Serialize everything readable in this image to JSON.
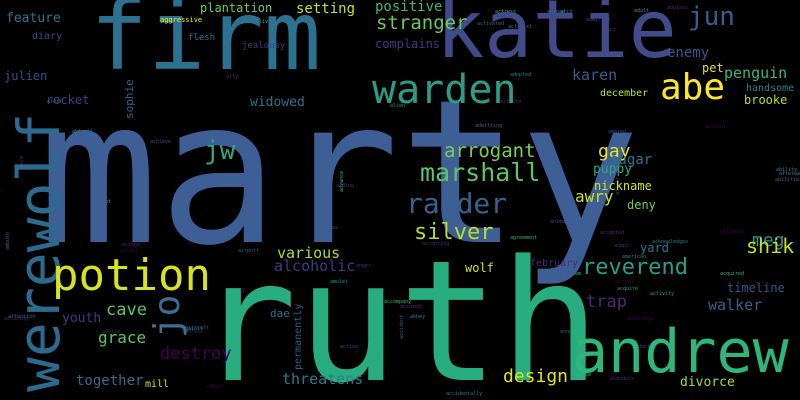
{
  "words": [
    {
      "text": "marty",
      "color": "#3d5f95"
    },
    {
      "text": "ruth",
      "color": "#27ad80"
    },
    {
      "text": "firm",
      "color": "#2c7190"
    },
    {
      "text": "katie",
      "color": "#414b89"
    },
    {
      "text": "andrew",
      "color": "#2fb67b"
    },
    {
      "text": "werewolf",
      "color": "#2c6a90"
    },
    {
      "text": "potion",
      "color": "#d8e21d"
    },
    {
      "text": "warden",
      "color": "#2d9c87"
    },
    {
      "text": "abe",
      "color": "#fde725"
    },
    {
      "text": "jun",
      "color": "#3b5c8d"
    },
    {
      "text": "raider",
      "color": "#36638c"
    },
    {
      "text": "marshall",
      "color": "#5ec661"
    },
    {
      "text": "reverend",
      "color": "#27a084"
    },
    {
      "text": "jw",
      "color": "#2ca982"
    },
    {
      "text": "stranger",
      "color": "#6ccb5d"
    },
    {
      "text": "arrogant",
      "color": "#7ad151"
    },
    {
      "text": "silver",
      "color": "#b5de2c"
    },
    {
      "text": "design",
      "color": "#e3e419"
    },
    {
      "text": "jo",
      "color": "#3b6f8f"
    },
    {
      "text": "meg",
      "color": "#2a8f8b"
    },
    {
      "text": "shik",
      "color": "#c2df23"
    },
    {
      "text": "penguin",
      "color": "#39b77a"
    },
    {
      "text": "gay",
      "color": "#ece51b"
    },
    {
      "text": "setting",
      "color": "#cce11d"
    },
    {
      "text": "walker",
      "color": "#33628d"
    },
    {
      "text": "destroy",
      "color": "#440154"
    },
    {
      "text": "grace",
      "color": "#5dc863"
    },
    {
      "text": "threatens",
      "color": "#2b7b8e"
    },
    {
      "text": "cave",
      "color": "#5cc863"
    },
    {
      "text": "trap",
      "color": "#4d2a72"
    },
    {
      "text": "alcoholic",
      "color": "#453781"
    },
    {
      "text": "various",
      "color": "#addc30"
    },
    {
      "text": "together",
      "color": "#2f6c8e"
    },
    {
      "text": "divorce",
      "color": "#a2da37"
    },
    {
      "text": "positive",
      "color": "#3aba76"
    },
    {
      "text": "plantation",
      "color": "#6ece58"
    },
    {
      "text": "karen",
      "color": "#3b5c8d"
    },
    {
      "text": "awry",
      "color": "#c7e020"
    },
    {
      "text": "enemy",
      "color": "#3a548c"
    },
    {
      "text": "feature",
      "color": "#2b758e"
    },
    {
      "text": "widowed",
      "color": "#2d708e"
    },
    {
      "text": "sugar",
      "color": "#2c718e"
    },
    {
      "text": "timeline",
      "color": "#3a538b"
    },
    {
      "text": "youth",
      "color": "#453781"
    },
    {
      "text": "complains",
      "color": "#453882"
    },
    {
      "text": "brooke",
      "color": "#b8de29"
    },
    {
      "text": "puppy",
      "color": "#2ea47f"
    },
    {
      "text": "wolf",
      "color": "#d5e21a"
    },
    {
      "text": "nickname",
      "color": "#d2e21b"
    },
    {
      "text": "yard",
      "color": "#2a798e"
    },
    {
      "text": "deny",
      "color": "#6dcd59"
    },
    {
      "text": "julien",
      "color": "#3e4a89"
    },
    {
      "text": "sophie",
      "color": "#33638d"
    },
    {
      "text": "rocket",
      "color": "#433e85"
    },
    {
      "text": "dae",
      "color": "#2e6e8e"
    },
    {
      "text": "pet",
      "color": "#dfe318"
    },
    {
      "text": "mill",
      "color": "#d8e219"
    },
    {
      "text": "diary",
      "color": "#3f4788"
    },
    {
      "text": "handsome",
      "color": "#24868e"
    },
    {
      "text": "december",
      "color": "#c2df23"
    },
    {
      "text": "permanently",
      "color": "#38588c"
    },
    {
      "text": "jealousy",
      "color": "#443a83"
    },
    {
      "text": "flesh",
      "color": "#2e6f8e"
    },
    {
      "text": "aggressive",
      "color": "#fde725"
    },
    {
      "text": "february",
      "color": "#472c7a"
    }
  ],
  "tiny_words": [
    "abandons",
    "abducted",
    "abilities",
    "ability",
    "abroad",
    "abuse",
    "accept",
    "accepted",
    "accepting",
    "access",
    "accident",
    "accidentally",
    "accompanies",
    "accompany",
    "account",
    "accused",
    "accusing",
    "achieve",
    "acid",
    "acknowledges",
    "acquire",
    "acquired",
    "acquires",
    "act",
    "acting",
    "action",
    "activated",
    "activist",
    "activity",
    "actress",
    "actual",
    "adapt",
    "address",
    "admitted",
    "admitting",
    "adopted",
    "adult",
    "advance",
    "advantage",
    "advice",
    "advises",
    "affair",
    "affection",
    "afterwards",
    "against",
    "agreement",
    "aided",
    "aim",
    "air",
    "aircraft",
    "airport",
    "alert",
    "alien",
    "alive",
    "alliance",
    "ally",
    "altered",
    "amazed",
    "ambush",
    "american",
    "amulet",
    "ancient",
    "angel",
    "anger",
    "angry",
    "animal",
    "announce",
    "abbey",
    "abigail",
    "abraham",
    "acid",
    "adding"
  ]
}
